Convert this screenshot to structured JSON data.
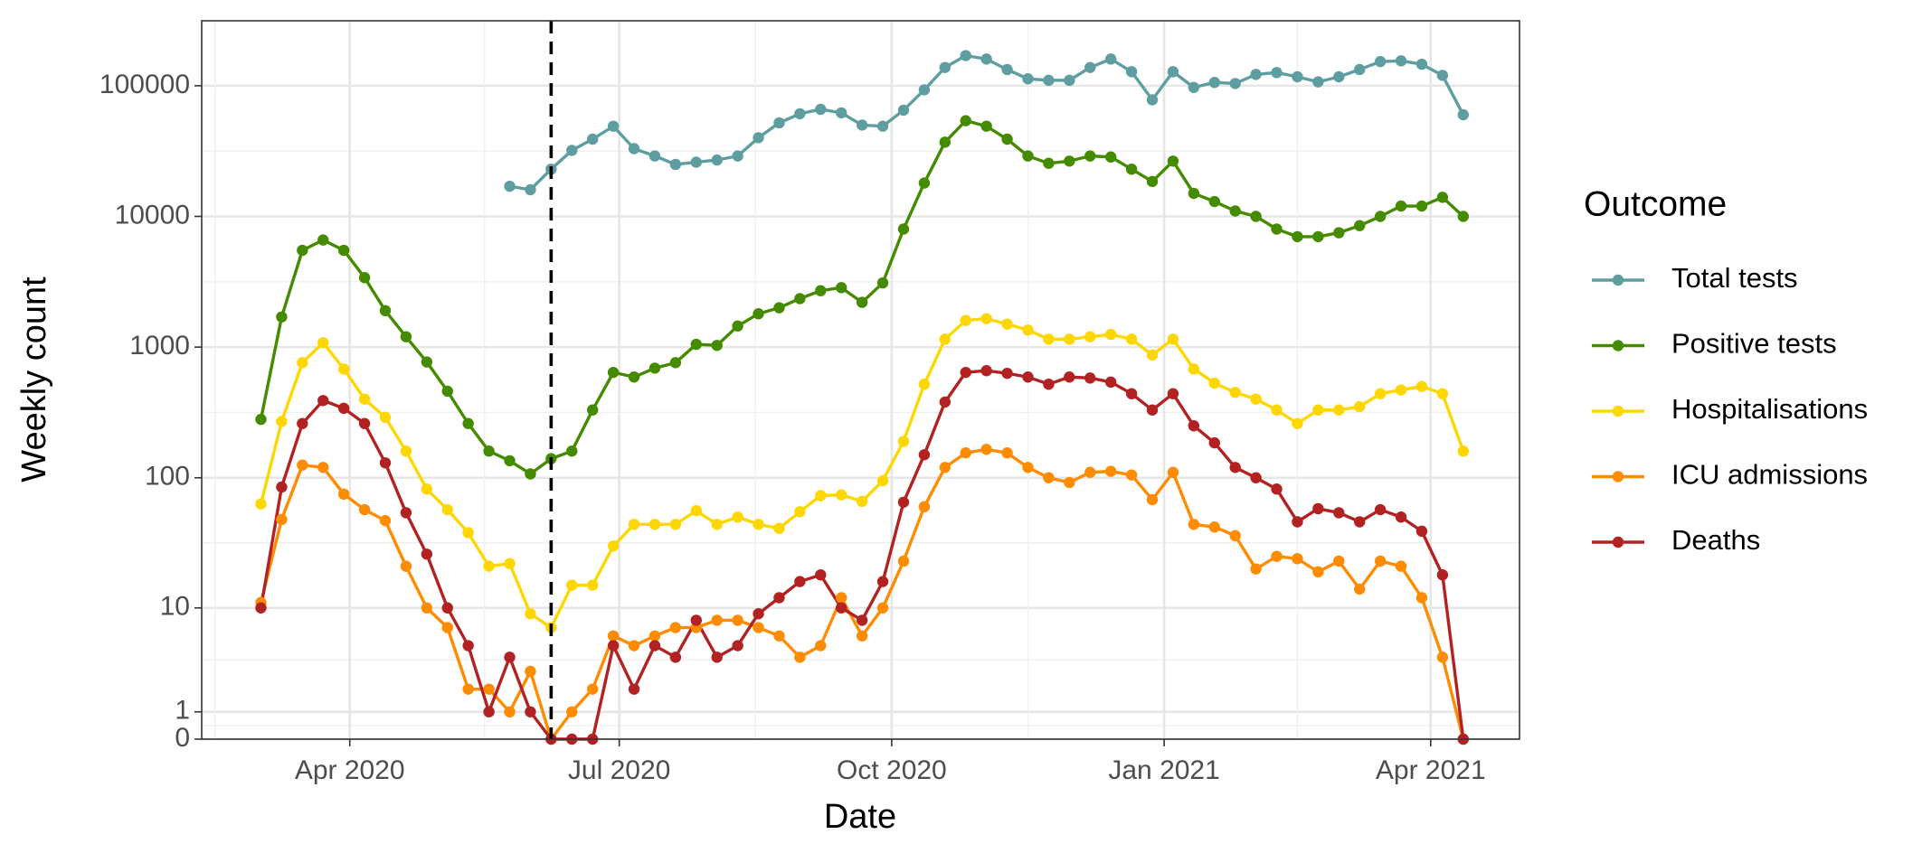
{
  "chart_data": {
    "type": "line",
    "x_label": "Date",
    "y_label": "Weekly count",
    "legend_title": "Outcome",
    "legend": "right",
    "yscale": "pseudo_log",
    "grid": true,
    "vline": "2020-06-08",
    "x": [
      "2020-03-02",
      "2020-03-09",
      "2020-03-16",
      "2020-03-23",
      "2020-03-30",
      "2020-04-06",
      "2020-04-13",
      "2020-04-20",
      "2020-04-27",
      "2020-05-04",
      "2020-05-11",
      "2020-05-18",
      "2020-05-25",
      "2020-06-01",
      "2020-06-08",
      "2020-06-15",
      "2020-06-22",
      "2020-06-29",
      "2020-07-06",
      "2020-07-13",
      "2020-07-20",
      "2020-07-27",
      "2020-08-03",
      "2020-08-10",
      "2020-08-17",
      "2020-08-24",
      "2020-08-31",
      "2020-09-07",
      "2020-09-14",
      "2020-09-21",
      "2020-09-28",
      "2020-10-05",
      "2020-10-12",
      "2020-10-19",
      "2020-10-26",
      "2020-11-02",
      "2020-11-09",
      "2020-11-16",
      "2020-11-23",
      "2020-11-30",
      "2020-12-07",
      "2020-12-14",
      "2020-12-21",
      "2020-12-28",
      "2021-01-04",
      "2021-01-11",
      "2021-01-18",
      "2021-01-25",
      "2021-02-01",
      "2021-02-08",
      "2021-02-15",
      "2021-02-22",
      "2021-03-01",
      "2021-03-08",
      "2021-03-15",
      "2021-03-22",
      "2021-03-29",
      "2021-04-05",
      "2021-04-12"
    ],
    "xlim": [
      "2020-02-11",
      "2021-05-01"
    ],
    "xticks": [
      {
        "value": "2020-04-01",
        "label": "Apr 2020"
      },
      {
        "value": "2020-07-01",
        "label": "Jul 2020"
      },
      {
        "value": "2020-10-01",
        "label": "Oct 2020"
      },
      {
        "value": "2021-01-01",
        "label": "Jan 2021"
      },
      {
        "value": "2021-04-01",
        "label": "Apr 2021"
      }
    ],
    "ylim": [
      0,
      314000
    ],
    "yticks": [
      0,
      1,
      10,
      100,
      1000,
      10000,
      100000
    ],
    "series": [
      {
        "name": "Total tests",
        "color": "#5f9ea0",
        "values": [
          null,
          null,
          null,
          null,
          null,
          null,
          null,
          null,
          null,
          null,
          null,
          null,
          17000,
          16000,
          23000,
          32000,
          39000,
          49000,
          33000,
          29000,
          25000,
          26000,
          27000,
          29000,
          40000,
          52000,
          61000,
          66000,
          62000,
          50000,
          49000,
          65000,
          93000,
          138000,
          170000,
          160000,
          133000,
          113000,
          110000,
          110000,
          138000,
          160000,
          128000,
          78000,
          128000,
          97000,
          106000,
          104000,
          122000,
          126000,
          117000,
          107000,
          117000,
          133000,
          153000,
          155000,
          146000,
          120000,
          60000
        ]
      },
      {
        "name": "Positive tests",
        "color": "#458b00",
        "values": [
          280,
          1700,
          5500,
          6600,
          5500,
          3400,
          1900,
          1200,
          770,
          460,
          260,
          160,
          135,
          107,
          140,
          160,
          330,
          640,
          590,
          690,
          760,
          1050,
          1030,
          1450,
          1800,
          2000,
          2350,
          2700,
          2850,
          2200,
          3100,
          8000,
          18000,
          37000,
          54000,
          49000,
          39000,
          29000,
          25500,
          26500,
          29000,
          28500,
          23000,
          18500,
          26500,
          15000,
          13000,
          11000,
          10000,
          8000,
          7000,
          7000,
          7500,
          8500,
          10000,
          12000,
          12000,
          14000,
          10000
        ]
      },
      {
        "name": "Hospitalisations",
        "color": "#ffd700",
        "values": [
          63,
          270,
          760,
          1080,
          680,
          400,
          290,
          160,
          82,
          57,
          38,
          21,
          22,
          9,
          7,
          15,
          15,
          30,
          44,
          44,
          44,
          56,
          44,
          50,
          44,
          41,
          55,
          73,
          74,
          66,
          95,
          190,
          520,
          1150,
          1600,
          1650,
          1500,
          1350,
          1150,
          1150,
          1200,
          1250,
          1150,
          870,
          1150,
          680,
          530,
          450,
          400,
          330,
          260,
          330,
          330,
          350,
          440,
          470,
          500,
          440,
          160
        ]
      },
      {
        "name": "ICU admissions",
        "color": "#ff8c00",
        "values": [
          11,
          48,
          125,
          120,
          75,
          57,
          47,
          21,
          10,
          7,
          2,
          2,
          1,
          3,
          0,
          1,
          2,
          6,
          5,
          6,
          7,
          7,
          8,
          8,
          7,
          6,
          4,
          5,
          12,
          6,
          10,
          23,
          60,
          120,
          155,
          165,
          155,
          120,
          100,
          92,
          110,
          112,
          105,
          68,
          110,
          44,
          42,
          36,
          20,
          25,
          24,
          19,
          23,
          14,
          23,
          21,
          12,
          4,
          0
        ]
      },
      {
        "name": "Deaths",
        "color": "#b22222",
        "values": [
          10,
          85,
          260,
          390,
          340,
          260,
          130,
          54,
          26,
          10,
          5,
          1,
          4,
          1,
          0,
          0,
          0,
          5,
          2,
          5,
          4,
          8,
          4,
          5,
          9,
          12,
          16,
          18,
          10,
          8,
          16,
          65,
          150,
          380,
          640,
          660,
          630,
          590,
          520,
          590,
          580,
          540,
          440,
          330,
          440,
          250,
          185,
          120,
          100,
          82,
          46,
          58,
          54,
          46,
          57,
          50,
          39,
          18,
          0
        ]
      }
    ]
  }
}
